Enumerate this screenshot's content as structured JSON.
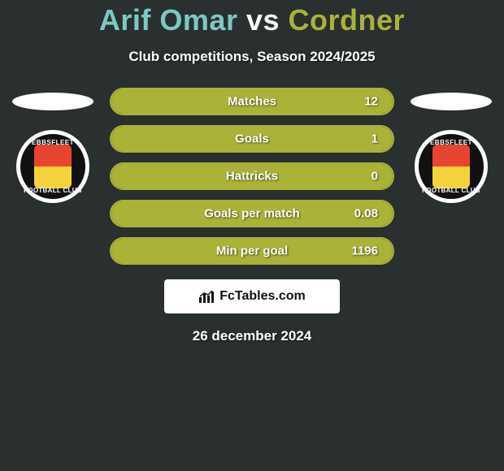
{
  "title": {
    "player1": "Arif Omar",
    "vs": "vs",
    "player2": "Cordner",
    "player1_color": "#7cc9c4",
    "vs_color": "#ffffff",
    "player2_color": "#aab238"
  },
  "subtitle": "Club competitions, Season 2024/2025",
  "accent_color": "#aab238",
  "bg_color": "#2a2f2f",
  "stats": [
    {
      "label": "Matches",
      "value": "12",
      "fill_pct": 100
    },
    {
      "label": "Goals",
      "value": "1",
      "fill_pct": 100
    },
    {
      "label": "Hattricks",
      "value": "0",
      "fill_pct": 100
    },
    {
      "label": "Goals per match",
      "value": "0.08",
      "fill_pct": 100
    },
    {
      "label": "Min per goal",
      "value": "1196",
      "fill_pct": 100
    }
  ],
  "badges": {
    "left": {
      "club_top": "EBBSFLEET UNITED",
      "club_bot": "FOOTBALL CLUB"
    },
    "right": {
      "club_top": "EBBSFLEET UNITED",
      "club_bot": "FOOTBALL CLUB"
    }
  },
  "footer_brand": "FcTables.com",
  "date": "26 december 2024"
}
